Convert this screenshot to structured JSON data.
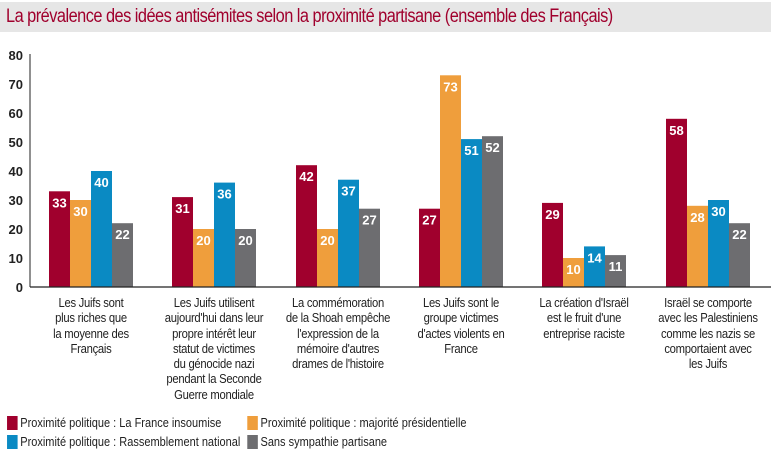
{
  "chart_data": {
    "type": "bar",
    "title": "La prévalence des idées antisémites selon la proximité partisane (ensemble des Français)",
    "xlabel": "",
    "ylabel": "",
    "ylim": [
      0,
      80
    ],
    "yticks": [
      0,
      10,
      20,
      30,
      40,
      50,
      60,
      70,
      80
    ],
    "grid": false,
    "legend_position": "bottom-left",
    "categories": [
      "Les Juifs sont plus riches que la moyenne des Français",
      "Les Juifs utilisent aujourd'hui dans leur propre intérêt leur statut de victimes du génocide nazi pendant la Seconde Guerre mondiale",
      "La commémoration de la Shoah empêche l'expression de la mémoire d'autres drames de l'histoire",
      "Les Juifs sont le groupe victimes d'actes violents en France",
      "La création d'Israël est le fruit d'une entreprise raciste",
      "Israël se comporte avec les Palestiniens comme les nazis se comportaient avec les Juifs"
    ],
    "category_lines": [
      [
        "Les Juifs sont",
        "plus riches que",
        "la moyenne des",
        "Français"
      ],
      [
        "Les Juifs utilisent",
        "aujourd'hui dans leur",
        "propre intérêt leur",
        "statut de victimes",
        "du génocide nazi",
        "pendant la Seconde",
        "Guerre mondiale"
      ],
      [
        "La commémoration",
        "de la Shoah empêche",
        "l'expression de la",
        "mémoire d'autres",
        "drames de l'histoire"
      ],
      [
        "Les Juifs sont le",
        "groupe victimes",
        "d'actes violents en",
        "France"
      ],
      [
        "La création d'Israël",
        "est le fruit d'une",
        "entreprise raciste"
      ],
      [
        "Israël se comporte",
        "avec les Palestiniens",
        "comme les nazis se",
        "comportaient avec",
        "les Juifs"
      ]
    ],
    "series": [
      {
        "name": "Proximité politique : La France insoumise",
        "color": "#a0002d",
        "values": [
          33,
          31,
          42,
          27,
          29,
          58
        ]
      },
      {
        "name": "Proximité politique : majorité présidentielle",
        "color": "#ef9e3c",
        "values": [
          30,
          20,
          20,
          73,
          10,
          28
        ]
      },
      {
        "name": "Proximité politique : Rassemblement national",
        "color": "#0a8ac3",
        "values": [
          40,
          36,
          37,
          51,
          14,
          30
        ]
      },
      {
        "name": "Sans sympathie partisane",
        "color": "#6d6d70",
        "values": [
          22,
          20,
          27,
          52,
          11,
          22
        ]
      }
    ]
  }
}
